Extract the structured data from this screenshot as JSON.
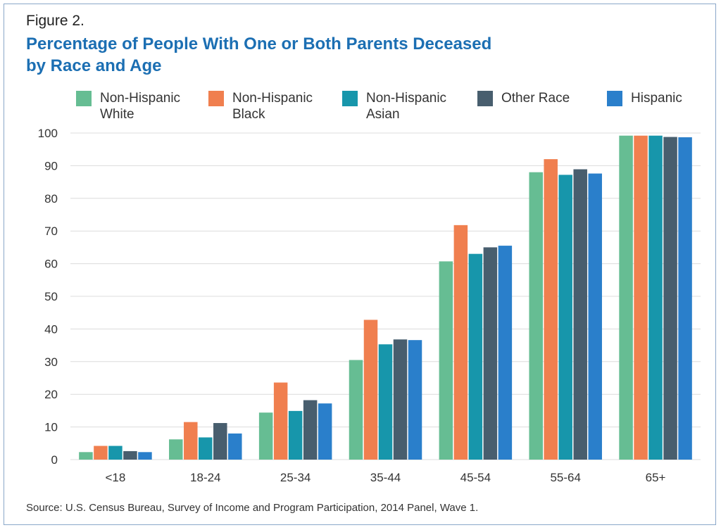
{
  "figure_label": "Figure 2.",
  "title_line1": "Percentage of People With One or Both Parents Deceased",
  "title_line2": "by Race and Age",
  "source": "Source: U.S. Census Bureau, Survey of Income and Program Participation, 2014 Panel, Wave 1.",
  "chart_data": {
    "type": "bar",
    "title": "Percentage of People With One or Both Parents Deceased by Race and Age",
    "xlabel": "",
    "ylabel": "",
    "ylim": [
      0,
      100
    ],
    "yticks": [
      "0",
      "10",
      "20",
      "30",
      "40",
      "50",
      "60",
      "70",
      "80",
      "90",
      "100"
    ],
    "grid": true,
    "legend_position": "top",
    "categories": [
      "<18",
      "18-24",
      "25-34",
      "35-44",
      "45-54",
      "55-64",
      "65+"
    ],
    "series": [
      {
        "name": "Non-Hispanic\nWhite",
        "color": "#66bd93",
        "values": [
          2.3,
          6.2,
          14.4,
          30.5,
          60.7,
          88.0,
          99.2
        ]
      },
      {
        "name": "Non-Hispanic\nBlack",
        "color": "#f07f4f",
        "values": [
          4.2,
          11.5,
          23.6,
          42.8,
          71.8,
          92.0,
          99.2
        ]
      },
      {
        "name": "Non-Hispanic\nAsian",
        "color": "#1796ab",
        "values": [
          4.2,
          6.8,
          14.9,
          35.3,
          63.0,
          87.2,
          99.2
        ]
      },
      {
        "name": "Other Race",
        "color": "#485e6e",
        "values": [
          2.6,
          11.2,
          18.2,
          36.8,
          65.0,
          88.9,
          98.8
        ]
      },
      {
        "name": "Hispanic",
        "color": "#2a7fcb",
        "values": [
          2.3,
          8.0,
          17.2,
          36.6,
          65.5,
          87.6,
          98.7
        ]
      }
    ]
  }
}
